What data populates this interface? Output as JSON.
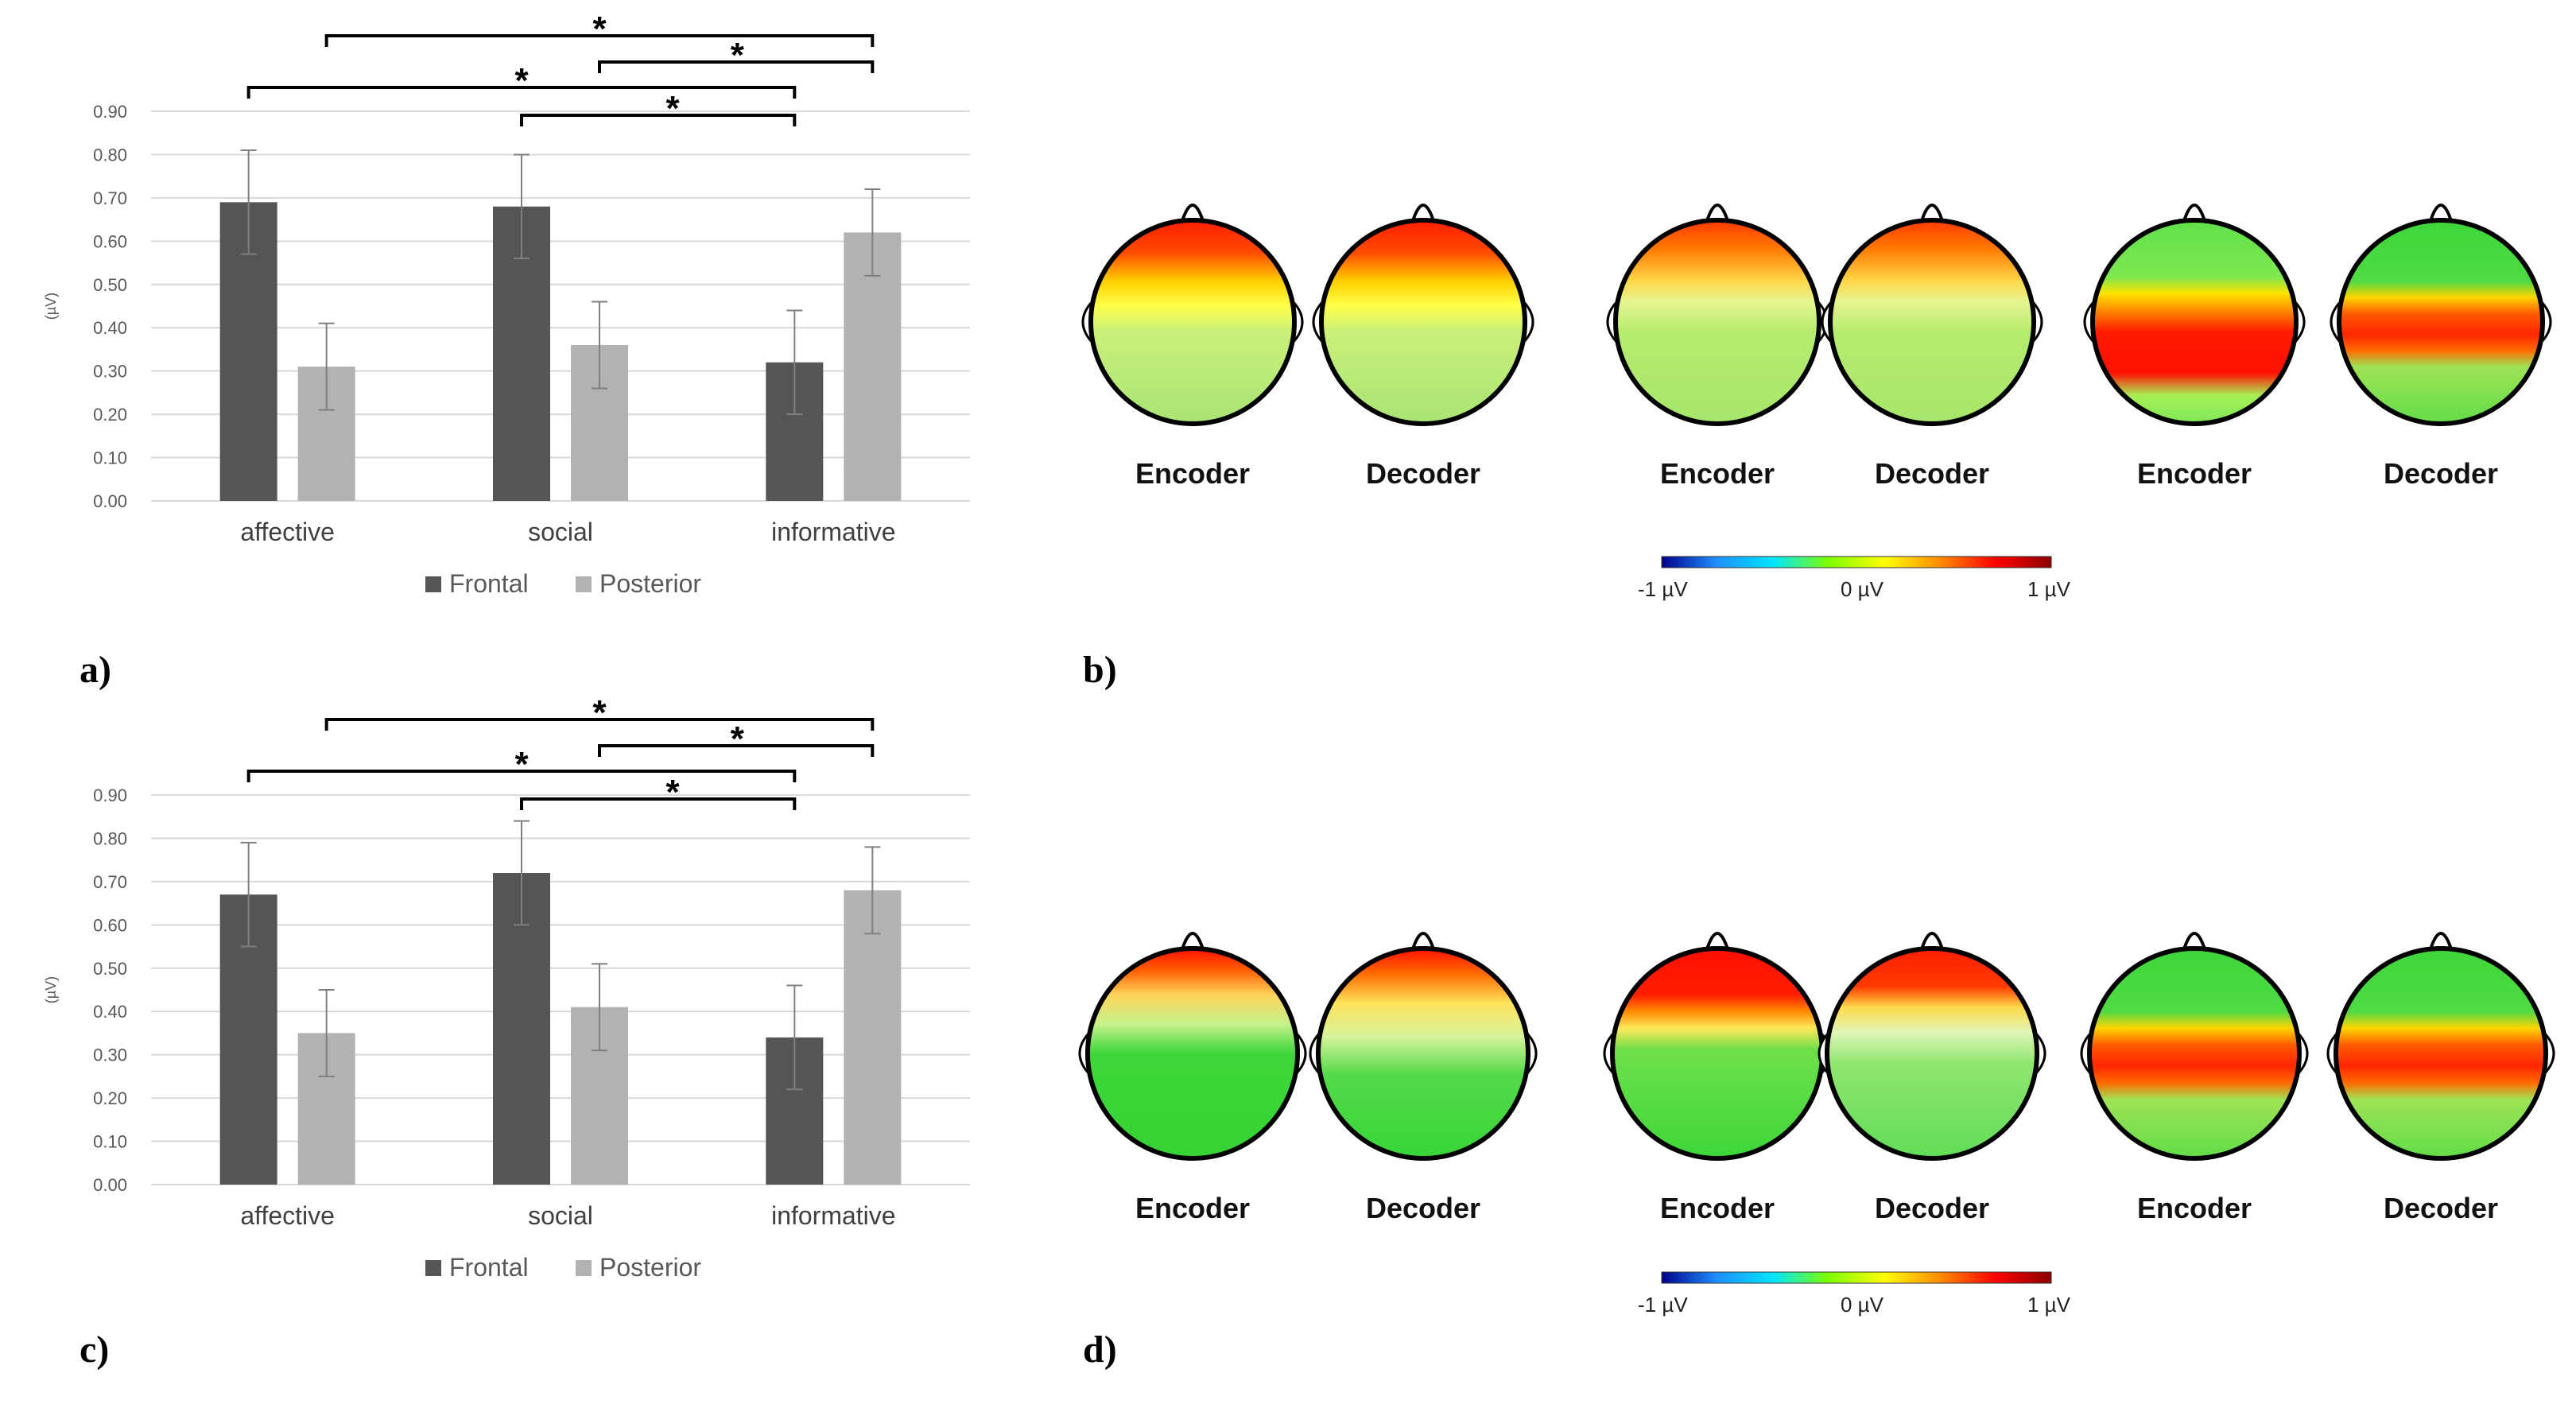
{
  "panel_labels": {
    "a": "a)",
    "b": "b)",
    "c": "c)",
    "d": "d)"
  },
  "chart_data": [
    {
      "id": "a",
      "type": "bar",
      "title": "",
      "xlabel": "",
      "ylabel": "(µV)",
      "ylim": [
        0,
        0.9
      ],
      "yticks": [
        "0.00",
        "0.10",
        "0.20",
        "0.30",
        "0.40",
        "0.50",
        "0.60",
        "0.70",
        "0.80",
        "0.90"
      ],
      "grid": true,
      "legend": "bottom",
      "categories": [
        "affective",
        "social",
        "informative"
      ],
      "series": [
        {
          "name": "Frontal",
          "color": "#555555",
          "values": [
            0.69,
            0.68,
            0.32
          ],
          "errors": [
            0.12,
            0.12,
            0.12
          ]
        },
        {
          "name": "Posterior",
          "color": "#b2b2b2",
          "values": [
            0.31,
            0.36,
            0.62
          ],
          "errors": [
            0.1,
            0.1,
            0.1
          ]
        }
      ],
      "significance": [
        {
          "from": "affective-posterior",
          "to": "informative-posterior",
          "label": "*"
        },
        {
          "from": "social-posterior",
          "to": "informative-posterior",
          "label": "*"
        },
        {
          "from": "affective-frontal",
          "to": "informative-frontal",
          "label": "*"
        },
        {
          "from": "social-frontal",
          "to": "informative-frontal",
          "label": "*"
        }
      ]
    },
    {
      "id": "c",
      "type": "bar",
      "title": "",
      "xlabel": "",
      "ylabel": "(µV)",
      "ylim": [
        0,
        0.9
      ],
      "yticks": [
        "0.00",
        "0.10",
        "0.20",
        "0.30",
        "0.40",
        "0.50",
        "0.60",
        "0.70",
        "0.80",
        "0.90"
      ],
      "grid": true,
      "legend": "bottom",
      "categories": [
        "affective",
        "social",
        "informative"
      ],
      "series": [
        {
          "name": "Frontal",
          "color": "#555555",
          "values": [
            0.67,
            0.72,
            0.34
          ],
          "errors": [
            0.12,
            0.12,
            0.12
          ]
        },
        {
          "name": "Posterior",
          "color": "#b2b2b2",
          "values": [
            0.35,
            0.41,
            0.68
          ],
          "errors": [
            0.1,
            0.1,
            0.1
          ]
        }
      ],
      "significance": [
        {
          "from": "affective-posterior",
          "to": "informative-posterior",
          "label": "*"
        },
        {
          "from": "social-posterior",
          "to": "informative-posterior",
          "label": "*"
        },
        {
          "from": "affective-frontal",
          "to": "informative-frontal",
          "label": "*"
        },
        {
          "from": "social-frontal",
          "to": "informative-frontal",
          "label": "*"
        }
      ]
    }
  ],
  "topomaps": {
    "colorbar": {
      "min_label": "-1  µV",
      "mid_label": "0 µV",
      "max_label": "1  µV",
      "range": [
        -1,
        1
      ],
      "colors": [
        "#00008b",
        "#1e90ff",
        "#00e5ff",
        "#7fff00",
        "#ffff00",
        "#ff8c00",
        "#ff0000",
        "#8b0000"
      ]
    },
    "b": [
      {
        "label": "Encoder",
        "pattern": "frontal-strong"
      },
      {
        "label": "Decoder",
        "pattern": "frontal-strong"
      },
      {
        "label": "Encoder",
        "pattern": "frontal-mild"
      },
      {
        "label": "Decoder",
        "pattern": "frontal-mild"
      },
      {
        "label": "Encoder",
        "pattern": "posterior-strong"
      },
      {
        "label": "Decoder",
        "pattern": "central-band"
      }
    ],
    "d": [
      {
        "label": "Encoder",
        "pattern": "frontal-small"
      },
      {
        "label": "Decoder",
        "pattern": "frontal-small-v"
      },
      {
        "label": "Encoder",
        "pattern": "frontal-big"
      },
      {
        "label": "Decoder",
        "pattern": "frontal-big-light"
      },
      {
        "label": "Encoder",
        "pattern": "central-band"
      },
      {
        "label": "Decoder",
        "pattern": "central-band"
      }
    ]
  }
}
